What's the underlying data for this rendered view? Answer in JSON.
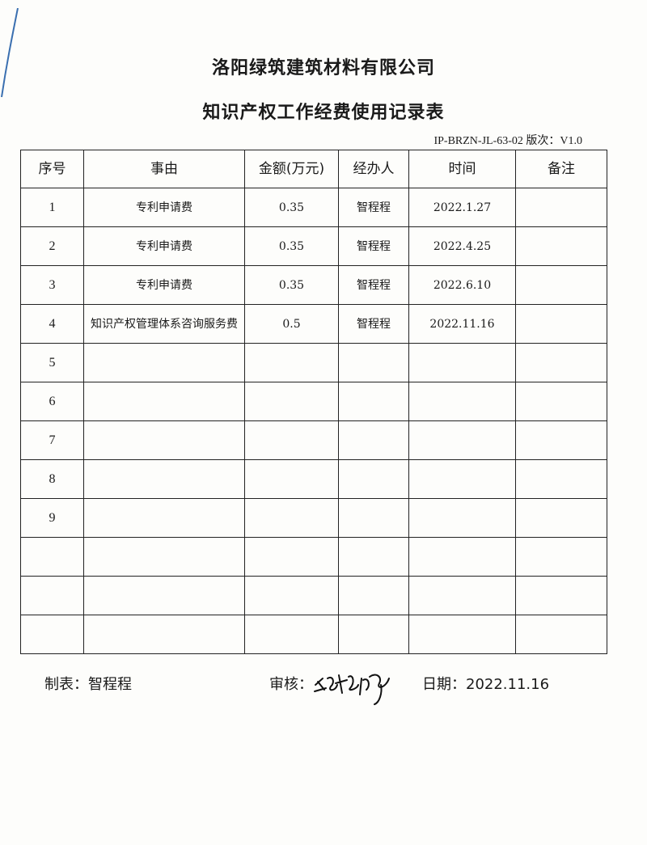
{
  "company": "洛阳绿筑建筑材料有限公司",
  "form_title": "知识产权工作经费使用记录表",
  "form_code": "IP-BRZN-JL-63-02 版次：V1.0",
  "headers": [
    "序号",
    "事由",
    "金额(万元)",
    "经办人",
    "时间",
    "备注"
  ],
  "rows": [
    {
      "seq": "1",
      "reason": "专利申请费",
      "amount": "0.35",
      "handler": "智程程",
      "date": "2022.1.27",
      "note": ""
    },
    {
      "seq": "2",
      "reason": "专利申请费",
      "amount": "0.35",
      "handler": "智程程",
      "date": "2022.4.25",
      "note": ""
    },
    {
      "seq": "3",
      "reason": "专利申请费",
      "amount": "0.35",
      "handler": "智程程",
      "date": "2022.6.10",
      "note": ""
    },
    {
      "seq": "4",
      "reason": "知识产权管理体系咨询服务费",
      "amount": "0.5",
      "handler": "智程程",
      "date": "2022.11.16",
      "note": ""
    },
    {
      "seq": "5",
      "reason": "",
      "amount": "",
      "handler": "",
      "date": "",
      "note": ""
    },
    {
      "seq": "6",
      "reason": "",
      "amount": "",
      "handler": "",
      "date": "",
      "note": ""
    },
    {
      "seq": "7",
      "reason": "",
      "amount": "",
      "handler": "",
      "date": "",
      "note": ""
    },
    {
      "seq": "8",
      "reason": "",
      "amount": "",
      "handler": "",
      "date": "",
      "note": ""
    },
    {
      "seq": "9",
      "reason": "",
      "amount": "",
      "handler": "",
      "date": "",
      "note": ""
    },
    {
      "seq": "",
      "reason": "",
      "amount": "",
      "handler": "",
      "date": "",
      "note": ""
    },
    {
      "seq": "",
      "reason": "",
      "amount": "",
      "handler": "",
      "date": "",
      "note": ""
    },
    {
      "seq": "",
      "reason": "",
      "amount": "",
      "handler": "",
      "date": "",
      "note": ""
    }
  ],
  "footer": {
    "prepared_by": "制表：智程程",
    "reviewed_label": "审核：",
    "reviewer_signature": "智程程",
    "date": "日期：2022.11.16"
  }
}
